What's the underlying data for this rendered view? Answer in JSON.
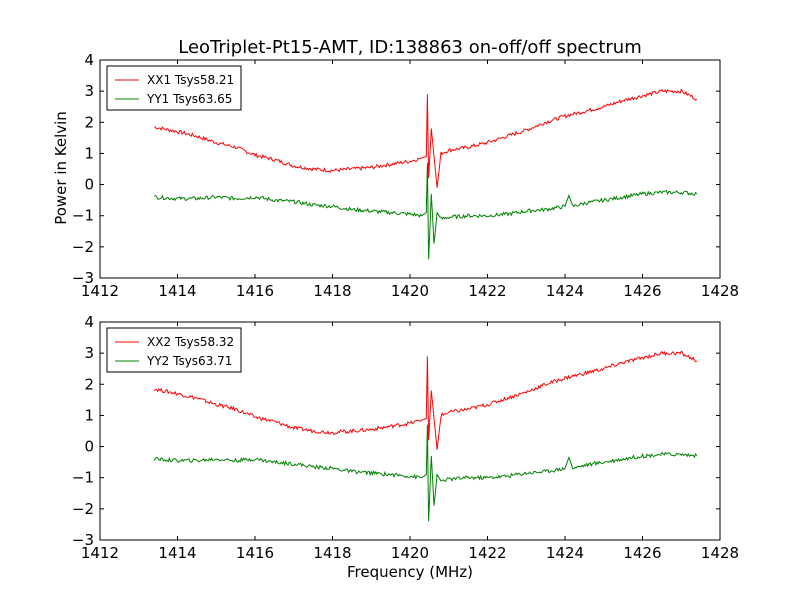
{
  "title": "LeoTriplet-Pt15-AMT, ID:138863 on-off/off spectrum",
  "ylabel": "Power in Kelvin",
  "xlabel": "Frequency (MHz)",
  "colors": {
    "xx": "#ff0000",
    "yy": "#008000"
  },
  "chart_data": [
    {
      "type": "line",
      "xlim": [
        1412,
        1428
      ],
      "ylim": [
        -3,
        4
      ],
      "xticks": [
        1412,
        1414,
        1416,
        1418,
        1420,
        1422,
        1424,
        1426,
        1428
      ],
      "yticks": [
        -3,
        -2,
        -1,
        0,
        1,
        2,
        3,
        4
      ],
      "xlabel": "",
      "ylabel": "Power in Kelvin",
      "legend_position": "top-left",
      "series": [
        {
          "name": "XX1 Tsys58.21",
          "color": "#ff0000",
          "x": [
            1413.4,
            1414.0,
            1414.5,
            1415.0,
            1415.5,
            1416.0,
            1416.5,
            1417.0,
            1417.5,
            1418.0,
            1418.5,
            1419.0,
            1419.5,
            1420.0,
            1420.3,
            1420.42,
            1420.45,
            1420.48,
            1420.55,
            1420.62,
            1420.7,
            1420.8,
            1421.0,
            1421.5,
            1422.0,
            1422.5,
            1423.0,
            1423.5,
            1424.0,
            1424.5,
            1425.0,
            1425.5,
            1426.0,
            1426.5,
            1427.0,
            1427.4
          ],
          "y": [
            1.85,
            1.7,
            1.55,
            1.35,
            1.2,
            0.95,
            0.8,
            0.6,
            0.5,
            0.45,
            0.5,
            0.55,
            0.65,
            0.75,
            0.85,
            0.9,
            2.9,
            0.2,
            1.8,
            0.9,
            -0.1,
            1.0,
            1.1,
            1.2,
            1.35,
            1.55,
            1.75,
            2.0,
            2.2,
            2.35,
            2.5,
            2.7,
            2.85,
            3.0,
            3.0,
            2.75
          ]
        },
        {
          "name": "YY1 Tsys63.65",
          "color": "#008000",
          "x": [
            1413.4,
            1414.0,
            1414.5,
            1415.0,
            1415.5,
            1416.0,
            1416.5,
            1417.0,
            1417.5,
            1418.0,
            1418.5,
            1419.0,
            1419.5,
            1420.0,
            1420.3,
            1420.42,
            1420.45,
            1420.48,
            1420.55,
            1420.62,
            1420.7,
            1420.8,
            1421.0,
            1421.5,
            1422.0,
            1422.5,
            1423.0,
            1423.5,
            1424.0,
            1424.1,
            1424.2,
            1424.5,
            1425.0,
            1425.5,
            1426.0,
            1426.5,
            1427.0,
            1427.4
          ],
          "y": [
            -0.4,
            -0.45,
            -0.45,
            -0.4,
            -0.45,
            -0.4,
            -0.5,
            -0.55,
            -0.65,
            -0.7,
            -0.8,
            -0.85,
            -0.9,
            -0.95,
            -1.0,
            -0.9,
            0.7,
            -2.4,
            -0.3,
            -1.9,
            -0.9,
            -1.1,
            -1.05,
            -1.0,
            -1.0,
            -0.95,
            -0.85,
            -0.8,
            -0.7,
            -0.35,
            -0.7,
            -0.6,
            -0.5,
            -0.4,
            -0.3,
            -0.25,
            -0.25,
            -0.3
          ]
        }
      ]
    },
    {
      "type": "line",
      "xlim": [
        1412,
        1428
      ],
      "ylim": [
        -3,
        4
      ],
      "xticks": [
        1412,
        1414,
        1416,
        1418,
        1420,
        1422,
        1424,
        1426,
        1428
      ],
      "yticks": [
        -3,
        -2,
        -1,
        0,
        1,
        2,
        3,
        4
      ],
      "xlabel": "Frequency (MHz)",
      "ylabel": "",
      "legend_position": "top-left",
      "series": [
        {
          "name": "XX2 Tsys58.32",
          "color": "#ff0000",
          "x": [
            1413.4,
            1414.0,
            1414.5,
            1415.0,
            1415.5,
            1416.0,
            1416.5,
            1417.0,
            1417.5,
            1418.0,
            1418.5,
            1419.0,
            1419.5,
            1420.0,
            1420.3,
            1420.42,
            1420.45,
            1420.48,
            1420.55,
            1420.62,
            1420.7,
            1420.8,
            1421.0,
            1421.5,
            1422.0,
            1422.5,
            1423.0,
            1423.5,
            1424.0,
            1424.5,
            1425.0,
            1425.5,
            1426.0,
            1426.5,
            1427.0,
            1427.4
          ],
          "y": [
            1.85,
            1.7,
            1.55,
            1.35,
            1.2,
            0.95,
            0.8,
            0.6,
            0.5,
            0.45,
            0.5,
            0.55,
            0.65,
            0.75,
            0.85,
            0.9,
            2.9,
            0.2,
            1.8,
            0.9,
            -0.1,
            1.0,
            1.1,
            1.2,
            1.35,
            1.55,
            1.75,
            2.0,
            2.2,
            2.35,
            2.5,
            2.7,
            2.85,
            3.0,
            3.0,
            2.75
          ]
        },
        {
          "name": "YY2 Tsys63.71",
          "color": "#008000",
          "x": [
            1413.4,
            1414.0,
            1414.5,
            1415.0,
            1415.5,
            1416.0,
            1416.5,
            1417.0,
            1417.5,
            1418.0,
            1418.5,
            1419.0,
            1419.5,
            1420.0,
            1420.3,
            1420.42,
            1420.45,
            1420.48,
            1420.55,
            1420.62,
            1420.7,
            1420.8,
            1421.0,
            1421.5,
            1422.0,
            1422.5,
            1423.0,
            1423.5,
            1424.0,
            1424.1,
            1424.2,
            1424.5,
            1425.0,
            1425.5,
            1426.0,
            1426.5,
            1427.0,
            1427.4
          ],
          "y": [
            -0.4,
            -0.45,
            -0.45,
            -0.4,
            -0.45,
            -0.4,
            -0.5,
            -0.55,
            -0.65,
            -0.7,
            -0.8,
            -0.85,
            -0.9,
            -0.95,
            -1.0,
            -0.9,
            0.7,
            -2.4,
            -0.3,
            -1.9,
            -0.9,
            -1.1,
            -1.05,
            -1.0,
            -1.0,
            -0.95,
            -0.85,
            -0.8,
            -0.7,
            -0.35,
            -0.7,
            -0.6,
            -0.5,
            -0.4,
            -0.3,
            -0.25,
            -0.25,
            -0.3
          ]
        }
      ]
    }
  ]
}
